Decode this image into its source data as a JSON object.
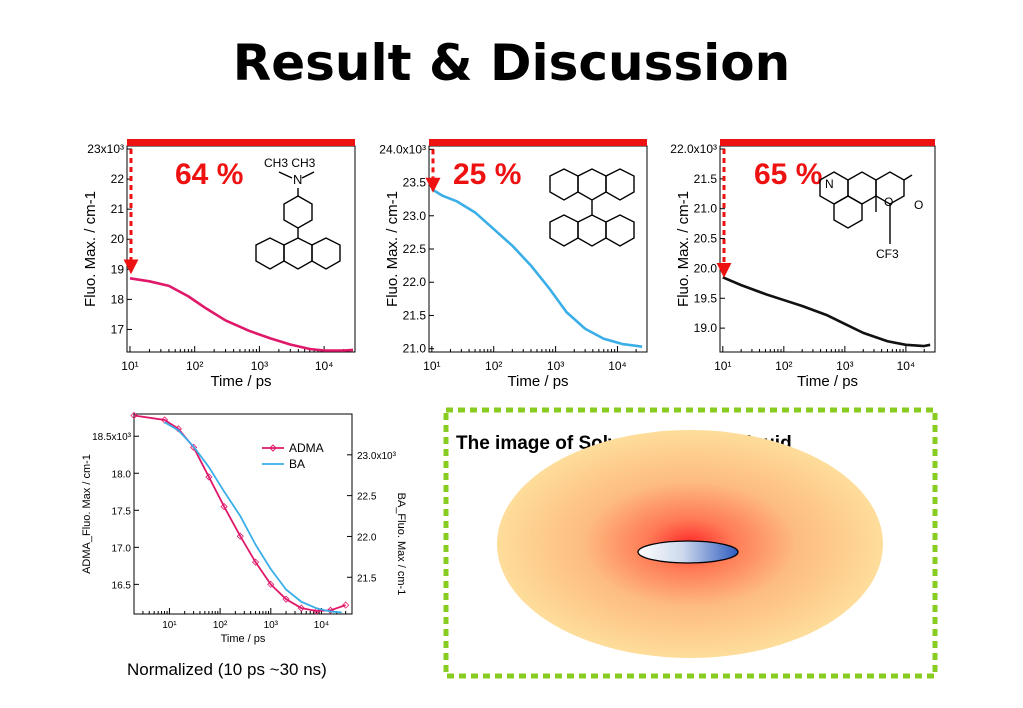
{
  "slide": {
    "title": "Result  & Discussion"
  },
  "caption": "Normalized (10 ps ~30 ns)",
  "colors": {
    "red_bar": "#ee1111",
    "adma": "#e0186a",
    "ba": "#3aaee8",
    "black": "#111111",
    "frame": "#88cc22"
  },
  "solvation": {
    "title": "The image of Solvation in ionic liquid"
  },
  "molecules": {
    "adma": {
      "top_label": "CH3   CH3",
      "n": "N"
    },
    "c153": {
      "o1": "O",
      "o2": "O",
      "n": "N",
      "cf3": "CF3"
    }
  },
  "chart_data": [
    {
      "type": "line",
      "id": "adma",
      "ylabel": "Fluo. Max. / cm-1",
      "xlabel": "Time / ps",
      "xscale": "log",
      "xlim": [
        9,
        30000
      ],
      "ylim": [
        16.25,
        23.1
      ],
      "yticks": [
        17,
        18,
        19,
        20,
        21,
        22,
        23
      ],
      "yticklabels": [
        "17",
        "18",
        "19",
        "20",
        "21",
        "22",
        "23x10³"
      ],
      "xticks": [
        10,
        100,
        1000,
        10000
      ],
      "xticklabels": [
        "10¹",
        "10²",
        "10³",
        "10⁴"
      ],
      "percent": "64 %",
      "arrow": {
        "from": 23.0,
        "to": 18.95
      },
      "series": [
        {
          "color": "#e0186a",
          "x": [
            10,
            20,
            40,
            80,
            150,
            300,
            700,
            1500,
            3000,
            6000,
            10000,
            20000,
            28000
          ],
          "y": [
            18.7,
            18.6,
            18.45,
            18.1,
            17.7,
            17.3,
            16.95,
            16.7,
            16.5,
            16.35,
            16.3,
            16.3,
            16.32
          ]
        }
      ]
    },
    {
      "type": "line",
      "id": "ba",
      "ylabel": "Fluo. Max. / cm-1",
      "xlabel": "Time / ps",
      "xscale": "log",
      "xlim": [
        9,
        30000
      ],
      "ylim": [
        20.95,
        24.05
      ],
      "yticks": [
        21.0,
        21.5,
        22.0,
        22.5,
        23.0,
        23.5,
        24.0
      ],
      "yticklabels": [
        "21.0",
        "21.5",
        "22.0",
        "22.5",
        "23.0",
        "23.5",
        "24.0x10³"
      ],
      "xticks": [
        10,
        100,
        1000,
        10000
      ],
      "xticklabels": [
        "10¹",
        "10²",
        "10³",
        "10⁴"
      ],
      "percent": "25 %",
      "arrow": {
        "from": 24.0,
        "to": 23.4
      },
      "series": [
        {
          "color": "#3aaee8",
          "x": [
            10,
            15,
            25,
            50,
            100,
            200,
            400,
            800,
            1500,
            3000,
            6000,
            12000,
            25000
          ],
          "y": [
            23.4,
            23.3,
            23.22,
            23.05,
            22.8,
            22.55,
            22.25,
            21.9,
            21.55,
            21.3,
            21.15,
            21.07,
            21.03
          ]
        }
      ]
    },
    {
      "type": "line",
      "id": "c153",
      "ylabel": "Fluo. Max. / cm-1",
      "xlabel": "Time / ps",
      "xscale": "log",
      "xlim": [
        9,
        30000
      ],
      "ylim": [
        18.6,
        22.05
      ],
      "yticks": [
        19.0,
        19.5,
        20.0,
        20.5,
        21.0,
        21.5,
        22.0
      ],
      "yticklabels": [
        "19.0",
        "19.5",
        "20.0",
        "20.5",
        "21.0",
        "21.5",
        "22.0x10³"
      ],
      "xticks": [
        10,
        100,
        1000,
        10000
      ],
      "xticklabels": [
        "10¹",
        "10²",
        "10³",
        "10⁴"
      ],
      "percent": "65 %",
      "arrow": {
        "from": 22.0,
        "to": 19.9
      },
      "series": [
        {
          "color": "#111111",
          "x": [
            10,
            20,
            50,
            100,
            200,
            500,
            1000,
            2000,
            5000,
            10000,
            20000,
            25000
          ],
          "y": [
            19.85,
            19.72,
            19.57,
            19.47,
            19.37,
            19.22,
            19.07,
            18.92,
            18.78,
            18.72,
            18.7,
            18.72
          ]
        }
      ]
    },
    {
      "type": "line",
      "id": "normalized",
      "ylabel": "ADMA_Fluo. Max / cm-1",
      "y2label": "BA_Fluo. Max / cm-1",
      "xlabel": "Time / ps",
      "xscale": "log",
      "xlim": [
        2,
        40000
      ],
      "ylim": [
        16.1,
        18.8
      ],
      "y2lim": [
        21.05,
        23.5
      ],
      "yticks": [
        16.5,
        17.0,
        17.5,
        18.0,
        18.5
      ],
      "yticklabels": [
        "16.5",
        "17.0",
        "17.5",
        "18.0",
        "18.5x10³"
      ],
      "y2ticks": [
        21.5,
        22.0,
        22.5,
        23.0
      ],
      "y2ticklabels": [
        "21.5",
        "22.0",
        "22.5",
        "23.0x10³"
      ],
      "xticks": [
        10,
        100,
        1000,
        10000
      ],
      "xticklabels": [
        "10¹",
        "10²",
        "10³",
        "10⁴"
      ],
      "legend": "top-right",
      "series": [
        {
          "name": "ADMA",
          "color": "#e0186a",
          "axis": "left",
          "markers": true,
          "x": [
            2,
            8,
            15,
            30,
            60,
            120,
            250,
            500,
            1000,
            2000,
            4000,
            8000,
            15000,
            30000
          ],
          "y": [
            18.78,
            18.72,
            18.6,
            18.35,
            17.95,
            17.55,
            17.15,
            16.8,
            16.5,
            16.3,
            16.18,
            16.14,
            16.15,
            16.22
          ]
        },
        {
          "name": "BA",
          "color": "#3aaee8",
          "axis": "right",
          "markers": false,
          "x": [
            8,
            15,
            30,
            60,
            120,
            250,
            500,
            1000,
            2000,
            4000,
            8000,
            15000,
            25000
          ],
          "y": [
            23.4,
            23.3,
            23.1,
            22.85,
            22.55,
            22.25,
            21.9,
            21.6,
            21.35,
            21.2,
            21.12,
            21.08,
            21.07
          ]
        }
      ]
    }
  ]
}
